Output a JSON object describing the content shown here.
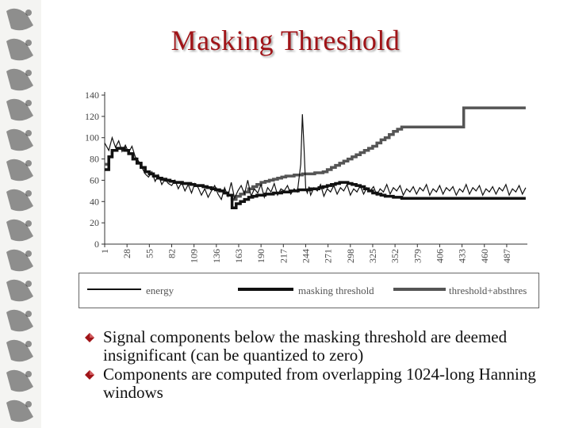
{
  "slide": {
    "title": "Masking Threshold"
  },
  "colors": {
    "title": "#a01418",
    "energy": "#111111",
    "masking": "#111111",
    "abs": "#555555",
    "bullet": "#a01418"
  },
  "icons": {
    "bullet": "diamond-bullet-icon"
  },
  "bullets": [
    "Signal components below the masking threshold are deemed insignificant (can be quantized to zero)",
    "Components are computed from overlapping 1024-long Hanning windows"
  ],
  "chart_data": {
    "type": "line",
    "title": "",
    "xlabel": "",
    "ylabel": "",
    "x_range": [
      1,
      512
    ],
    "ylim": [
      0,
      140
    ],
    "y_ticks": [
      0,
      20,
      40,
      60,
      80,
      100,
      120,
      140
    ],
    "x_ticks": [
      1,
      28,
      55,
      82,
      109,
      136,
      163,
      190,
      217,
      244,
      271,
      298,
      325,
      352,
      379,
      406,
      433,
      460,
      487
    ],
    "grid": false,
    "legend_position": "bottom",
    "series": [
      {
        "name": "energy",
        "x": [
          1,
          6,
          10,
          14,
          18,
          22,
          26,
          30,
          34,
          38,
          42,
          46,
          50,
          54,
          58,
          62,
          66,
          70,
          74,
          78,
          82,
          86,
          90,
          94,
          98,
          102,
          106,
          110,
          114,
          118,
          122,
          126,
          130,
          134,
          138,
          142,
          146,
          150,
          154,
          158,
          162,
          166,
          170,
          174,
          178,
          182,
          186,
          190,
          194,
          198,
          202,
          206,
          210,
          214,
          218,
          222,
          226,
          230,
          234,
          238,
          240,
          242,
          244,
          246,
          248,
          250,
          254,
          258,
          262,
          266,
          270,
          274,
          278,
          282,
          286,
          290,
          294,
          298,
          302,
          306,
          310,
          314,
          318,
          322,
          326,
          330,
          334,
          338,
          342,
          346,
          350,
          354,
          358,
          362,
          366,
          370,
          374,
          378,
          382,
          386,
          390,
          394,
          398,
          402,
          406,
          410,
          414,
          418,
          422,
          426,
          430,
          434,
          438,
          442,
          446,
          450,
          454,
          458,
          462,
          466,
          470,
          474,
          478,
          482,
          486,
          490,
          494,
          498,
          502,
          506,
          510
        ],
        "y": [
          95,
          88,
          100,
          91,
          97,
          87,
          93,
          86,
          92,
          82,
          78,
          72,
          66,
          63,
          68,
          59,
          65,
          56,
          61,
          57,
          55,
          60,
          52,
          58,
          50,
          56,
          48,
          57,
          53,
          46,
          52,
          44,
          50,
          55,
          47,
          42,
          53,
          45,
          58,
          43,
          50,
          55,
          47,
          60,
          45,
          52,
          48,
          56,
          44,
          53,
          49,
          57,
          46,
          52,
          50,
          55,
          47,
          52,
          49,
          75,
          122,
          90,
          52,
          48,
          54,
          46,
          53,
          50,
          56,
          45,
          52,
          49,
          55,
          47,
          53,
          50,
          56,
          46,
          52,
          49,
          55,
          47,
          53,
          50,
          54,
          46,
          52,
          49,
          56,
          47,
          53,
          50,
          55,
          46,
          52,
          49,
          54,
          47,
          53,
          50,
          56,
          46,
          52,
          49,
          55,
          47,
          53,
          50,
          54,
          46,
          52,
          49,
          56,
          47,
          53,
          50,
          55,
          46,
          52,
          49,
          54,
          47,
          53,
          50,
          56,
          46,
          52,
          49,
          55,
          47,
          53
        ]
      },
      {
        "name": "masking threshold",
        "x": [
          1,
          6,
          10,
          16,
          20,
          25,
          30,
          35,
          40,
          45,
          50,
          55,
          60,
          65,
          70,
          75,
          80,
          85,
          90,
          95,
          100,
          105,
          110,
          115,
          120,
          125,
          130,
          135,
          140,
          145,
          150,
          155,
          160,
          165,
          170,
          175,
          180,
          185,
          190,
          195,
          200,
          205,
          210,
          215,
          220,
          225,
          230,
          235,
          240,
          245,
          250,
          255,
          260,
          265,
          270,
          275,
          280,
          285,
          290,
          295,
          300,
          305,
          310,
          315,
          320,
          325,
          330,
          335,
          340,
          345,
          350,
          355,
          360,
          365,
          370,
          375,
          380,
          385,
          390,
          395,
          400,
          405,
          410,
          415,
          420,
          425,
          430,
          435,
          440,
          445,
          450,
          455,
          460,
          465,
          470,
          475,
          480,
          485,
          490,
          495,
          500,
          505,
          510
        ],
        "y": [
          70,
          82,
          88,
          90,
          90,
          88,
          85,
          80,
          76,
          72,
          68,
          66,
          64,
          62,
          61,
          60,
          59,
          58,
          58,
          57,
          57,
          56,
          55,
          55,
          54,
          53,
          52,
          51,
          50,
          48,
          46,
          34,
          38,
          40,
          42,
          44,
          45,
          46,
          46,
          47,
          47,
          48,
          48,
          49,
          49,
          50,
          50,
          51,
          51,
          51,
          52,
          52,
          53,
          54,
          55,
          56,
          57,
          58,
          58,
          57,
          56,
          55,
          54,
          52,
          50,
          48,
          47,
          46,
          45,
          45,
          44,
          44,
          43,
          43,
          43,
          43,
          43,
          43,
          43,
          43,
          43,
          43,
          43,
          43,
          43,
          43,
          43,
          43,
          43,
          43,
          43,
          43,
          43,
          43,
          43,
          43,
          43,
          43,
          43,
          43,
          43,
          43,
          43
        ]
      },
      {
        "name": "threshold+absthres",
        "x": [
          1,
          6,
          10,
          16,
          20,
          25,
          30,
          35,
          40,
          45,
          50,
          55,
          60,
          65,
          70,
          75,
          80,
          85,
          90,
          95,
          100,
          105,
          110,
          115,
          120,
          125,
          130,
          135,
          140,
          145,
          150,
          155,
          160,
          165,
          170,
          175,
          180,
          185,
          190,
          195,
          200,
          205,
          210,
          215,
          220,
          225,
          230,
          235,
          240,
          245,
          250,
          255,
          260,
          265,
          270,
          275,
          280,
          285,
          290,
          295,
          300,
          305,
          310,
          315,
          320,
          325,
          330,
          335,
          340,
          345,
          350,
          355,
          360,
          365,
          370,
          375,
          380,
          385,
          390,
          395,
          400,
          405,
          410,
          415,
          420,
          425,
          430,
          435,
          440,
          445,
          450,
          455,
          460,
          465,
          470,
          475,
          480,
          485,
          490,
          495,
          500,
          505,
          510
        ],
        "y": [
          75,
          82,
          88,
          90,
          90,
          88,
          85,
          80,
          76,
          72,
          68,
          66,
          64,
          62,
          61,
          60,
          59,
          58,
          58,
          57,
          57,
          56,
          55,
          55,
          54,
          53,
          52,
          51,
          50,
          48,
          46,
          42,
          45,
          47,
          49,
          52,
          54,
          56,
          58,
          59,
          60,
          61,
          62,
          63,
          64,
          64,
          65,
          65,
          66,
          66,
          66,
          67,
          67,
          68,
          70,
          72,
          74,
          76,
          78,
          80,
          82,
          84,
          86,
          88,
          90,
          92,
          95,
          98,
          100,
          103,
          106,
          108,
          110,
          110,
          110,
          110,
          110,
          110,
          110,
          110,
          110,
          110,
          110,
          110,
          110,
          110,
          110,
          128,
          128,
          128,
          128,
          128,
          128,
          128,
          128,
          128,
          128,
          128,
          128,
          128,
          128,
          128,
          128
        ]
      }
    ]
  }
}
